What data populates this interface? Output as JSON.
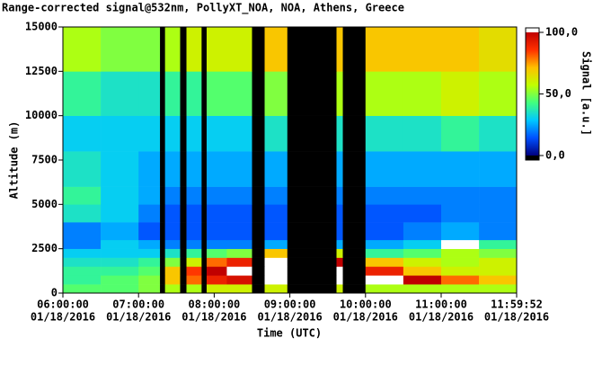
{
  "chart_data": {
    "type": "heatmap",
    "title": "Range-corrected signal@532nm, PollyXT_NOA, NOA, Athens, Greece",
    "x_label": "Time (UTC)",
    "y_label": "Altitude (m)",
    "x_edges": [
      "2016-01-18T06:00:00",
      "2016-01-18T06:30:00",
      "2016-01-18T07:00:00",
      "2016-01-18T07:17:00",
      "2016-01-18T07:21:00",
      "2016-01-18T07:33:00",
      "2016-01-18T07:38:00",
      "2016-01-18T07:50:00",
      "2016-01-18T07:54:00",
      "2016-01-18T08:10:00",
      "2016-01-18T08:30:00",
      "2016-01-18T08:40:00",
      "2016-01-18T08:58:00",
      "2016-01-18T09:37:00",
      "2016-01-18T09:42:00",
      "2016-01-18T10:00:00",
      "2016-01-18T10:30:00",
      "2016-01-18T11:00:00",
      "2016-01-18T11:30:00",
      "2016-01-18T11:59:52"
    ],
    "y_edges": [
      0,
      500,
      1000,
      1500,
      2000,
      2500,
      3000,
      4000,
      5000,
      6000,
      8000,
      10000,
      12500,
      15000
    ],
    "values": [
      [
        45,
        45,
        50,
        null,
        55,
        null,
        55,
        null,
        60,
        60,
        null,
        60,
        null,
        60,
        null,
        55,
        55,
        55,
        55
      ],
      [
        40,
        45,
        50,
        null,
        70,
        null,
        80,
        null,
        90,
        95,
        null,
        110,
        null,
        105,
        null,
        110,
        100,
        80,
        70
      ],
      [
        40,
        40,
        45,
        null,
        70,
        null,
        85,
        null,
        100,
        110,
        null,
        110,
        null,
        110,
        null,
        90,
        70,
        60,
        60
      ],
      [
        35,
        35,
        40,
        null,
        50,
        null,
        60,
        null,
        80,
        90,
        null,
        110,
        null,
        100,
        null,
        70,
        60,
        55,
        60
      ],
      [
        30,
        30,
        30,
        null,
        35,
        null,
        40,
        null,
        45,
        50,
        null,
        70,
        null,
        60,
        null,
        40,
        45,
        55,
        50
      ],
      [
        20,
        30,
        25,
        null,
        20,
        null,
        20,
        null,
        20,
        20,
        null,
        25,
        null,
        25,
        null,
        25,
        30,
        110,
        40
      ],
      [
        20,
        25,
        15,
        null,
        15,
        null,
        15,
        null,
        15,
        15,
        null,
        15,
        null,
        15,
        null,
        15,
        20,
        25,
        20
      ],
      [
        35,
        30,
        20,
        null,
        15,
        null,
        15,
        null,
        15,
        15,
        null,
        15,
        null,
        15,
        null,
        15,
        15,
        20,
        20
      ],
      [
        40,
        30,
        25,
        null,
        20,
        null,
        20,
        null,
        20,
        20,
        null,
        20,
        null,
        20,
        null,
        20,
        20,
        20,
        20
      ],
      [
        35,
        30,
        25,
        null,
        25,
        null,
        25,
        null,
        25,
        25,
        null,
        25,
        null,
        25,
        null,
        25,
        25,
        25,
        25
      ],
      [
        30,
        30,
        30,
        null,
        30,
        null,
        30,
        null,
        30,
        30,
        null,
        35,
        null,
        35,
        null,
        35,
        35,
        40,
        35
      ],
      [
        40,
        35,
        35,
        null,
        40,
        null,
        40,
        null,
        45,
        45,
        null,
        50,
        null,
        55,
        null,
        55,
        55,
        60,
        55
      ],
      [
        55,
        50,
        50,
        null,
        55,
        null,
        60,
        null,
        60,
        60,
        null,
        70,
        null,
        70,
        null,
        70,
        70,
        70,
        65
      ]
    ],
    "xlim": [
      "2016-01-18T06:00:00",
      "2016-01-18T11:59:52"
    ],
    "xticks": [
      {
        "value": "2016-01-18T06:00:00",
        "label": [
          "06:00:00",
          "01/18/2016"
        ]
      },
      {
        "value": "2016-01-18T07:00:00",
        "label": [
          "07:00:00",
          "01/18/2016"
        ]
      },
      {
        "value": "2016-01-18T08:00:00",
        "label": [
          "08:00:00",
          "01/18/2016"
        ]
      },
      {
        "value": "2016-01-18T09:00:00",
        "label": [
          "09:00:00",
          "01/18/2016"
        ]
      },
      {
        "value": "2016-01-18T10:00:00",
        "label": [
          "10:00:00",
          "01/18/2016"
        ]
      },
      {
        "value": "2016-01-18T11:00:00",
        "label": [
          "11:00:00",
          "01/18/2016"
        ]
      },
      {
        "value": "2016-01-18T11:59:52",
        "label": [
          "11:59:52",
          "01/18/2016"
        ]
      }
    ],
    "ylim": [
      0,
      15000
    ],
    "yticks": [
      0,
      2500,
      5000,
      7500,
      10000,
      12500,
      15000
    ],
    "colorbar": {
      "label": "Signal [a.u.]",
      "lim": [
        0,
        100
      ],
      "ticks": [
        {
          "value": 0,
          "label": "0,0"
        },
        {
          "value": 50,
          "label": "50,0"
        },
        {
          "value": 100,
          "label": "100,0"
        }
      ],
      "colormap": [
        "#00007f",
        "#0050ff",
        "#00c8ff",
        "#40ff80",
        "#c0ff00",
        "#ffc000",
        "#ff3000",
        "#c00000"
      ],
      "over_color": "#ffffff",
      "under_color": "#000000",
      "missing_color": "#000000"
    }
  }
}
